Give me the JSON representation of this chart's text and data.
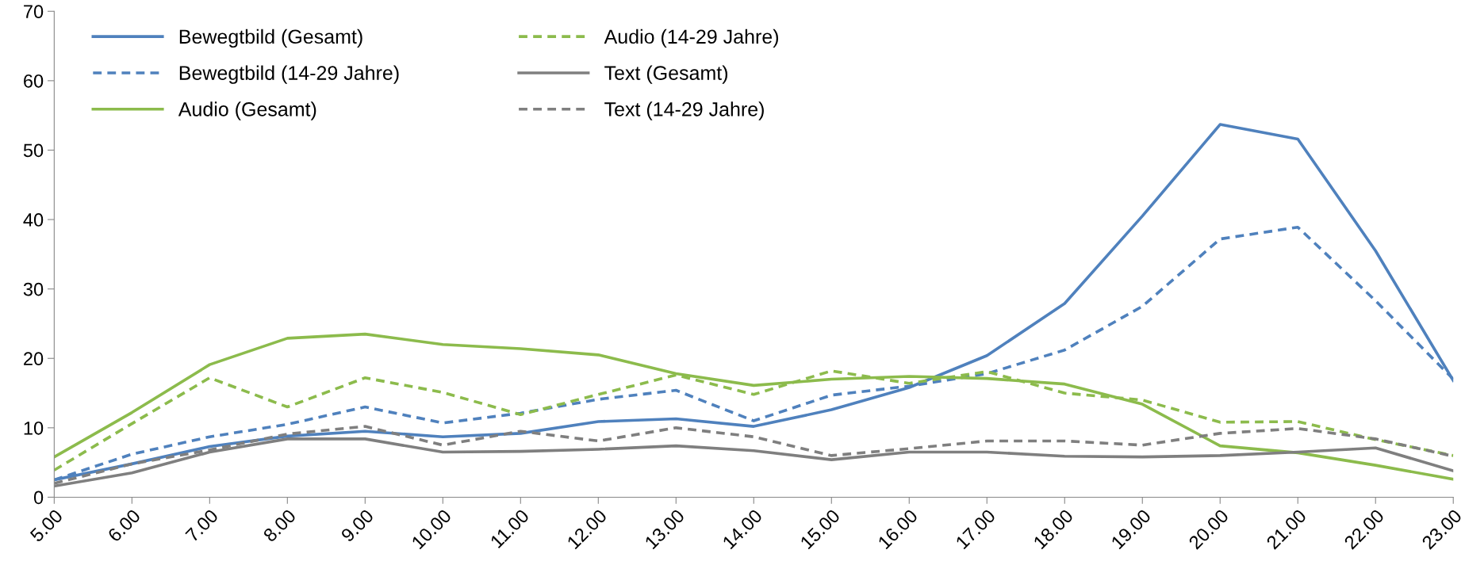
{
  "chart_data": {
    "type": "line",
    "categories": [
      "5.00",
      "6.00",
      "7.00",
      "8.00",
      "9.00",
      "10.00",
      "11.00",
      "12.00",
      "13.00",
      "14.00",
      "15.00",
      "16.00",
      "17.00",
      "18.00",
      "19.00",
      "20.00",
      "21.00",
      "22.00",
      "23.00"
    ],
    "series": [
      {
        "name": "Bewegtbild (Gesamt)",
        "color": "#4f81bd",
        "line_style": "solid",
        "values": [
          2.5,
          4.8,
          7.3,
          8.8,
          9.5,
          8.7,
          9.2,
          10.9,
          11.3,
          10.2,
          12.6,
          15.8,
          20.4,
          27.9,
          40.5,
          53.7,
          51.6,
          35.5,
          16.8
        ]
      },
      {
        "name": "Bewegtbild (14-29 Jahre)",
        "color": "#4f81bd",
        "line_style": "dashed",
        "values": [
          2.5,
          6.2,
          8.7,
          10.5,
          13.0,
          10.7,
          12.1,
          14.1,
          15.4,
          11.0,
          14.7,
          16.0,
          17.8,
          21.2,
          27.5,
          37.2,
          38.9,
          28.3,
          17.0
        ]
      },
      {
        "name": "Audio (Gesamt)",
        "color": "#8cbb4c",
        "line_style": "solid",
        "values": [
          5.8,
          12.2,
          19.1,
          22.9,
          23.5,
          22.0,
          21.4,
          20.5,
          17.8,
          16.1,
          17.0,
          17.4,
          17.1,
          16.3,
          13.4,
          7.4,
          6.4,
          4.6,
          2.6
        ]
      },
      {
        "name": "Audio (14-29 Jahre)",
        "color": "#8cbb4c",
        "line_style": "dashed",
        "values": [
          3.9,
          10.6,
          17.2,
          13.0,
          17.2,
          15.1,
          11.9,
          14.8,
          17.6,
          14.8,
          18.2,
          16.4,
          18.1,
          15.0,
          14.0,
          10.8,
          10.9,
          8.3,
          6.0
        ]
      },
      {
        "name": "Text (Gesamt)",
        "color": "#7f7f7f",
        "line_style": "solid",
        "values": [
          1.6,
          3.5,
          6.5,
          8.4,
          8.4,
          6.5,
          6.6,
          6.9,
          7.4,
          6.7,
          5.4,
          6.5,
          6.5,
          5.9,
          5.8,
          6.0,
          6.5,
          7.1,
          3.8
        ]
      },
      {
        "name": "Text (14-29 Jahre)",
        "color": "#7f7f7f",
        "line_style": "dashed",
        "values": [
          2.0,
          4.8,
          6.8,
          9.1,
          10.2,
          7.5,
          9.5,
          8.1,
          10.0,
          8.7,
          6.0,
          7.0,
          8.1,
          8.1,
          7.5,
          9.2,
          9.9,
          8.4,
          5.9
        ]
      }
    ],
    "ylim": [
      0,
      70
    ],
    "yticks": [
      0,
      10,
      20,
      30,
      40,
      50,
      60,
      70
    ],
    "grid": false,
    "legend": "top left"
  }
}
